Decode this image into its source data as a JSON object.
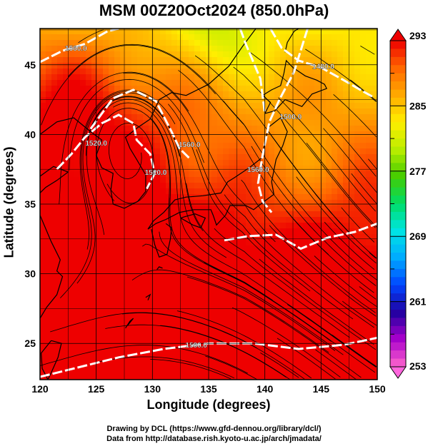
{
  "title": "MSM 00Z20Oct2024 (850.0hPa)",
  "xlabel": "Longitude (degrees)",
  "ylabel": "Latitude  (degrees)",
  "credits": [
    "Drawing by DCL (https://www.gfd-dennou.org/library/dcl/)",
    "Data from http://database.rish.kyoto-u.ac.jp/arch/jmadata/"
  ],
  "chart_data": {
    "type": "heatmap",
    "x_range": [
      120,
      150
    ],
    "y_range": [
      22.4,
      47.6
    ],
    "x_ticks": [
      "120",
      "125",
      "130",
      "135",
      "140",
      "145",
      "150"
    ],
    "y_ticks": [
      "25",
      "30",
      "35",
      "40",
      "45"
    ],
    "grid": true,
    "colorbar": {
      "placement": "right",
      "min": 253,
      "max": 293,
      "tick_labels": [
        "293",
        "285",
        "277",
        "269",
        "261",
        "253"
      ],
      "colors": [
        "#ff66cc",
        "#aa00cc",
        "#2000a0",
        "#0044ff",
        "#00aaff",
        "#00e5e5",
        "#00dd66",
        "#44cc00",
        "#bbee00",
        "#ffee00",
        "#ffaa00",
        "#ff6600",
        "#ee0000"
      ]
    },
    "contour_labels": [
      {
        "text": "1560.0",
        "lon": 123.2,
        "lat": 46.0
      },
      {
        "text": "1520.0",
        "lon": 125.0,
        "lat": 39.2
      },
      {
        "text": "1560.0",
        "lon": 133.3,
        "lat": 39.1
      },
      {
        "text": "1520.0",
        "lon": 130.3,
        "lat": 37.1
      },
      {
        "text": "1480.0",
        "lon": 145.2,
        "lat": 44.7
      },
      {
        "text": "1500.0",
        "lon": 142.3,
        "lat": 41.1
      },
      {
        "text": "1560.0",
        "lon": 139.4,
        "lat": 37.3
      },
      {
        "text": "1580.0",
        "lon": 133.9,
        "lat": 24.7
      }
    ]
  }
}
